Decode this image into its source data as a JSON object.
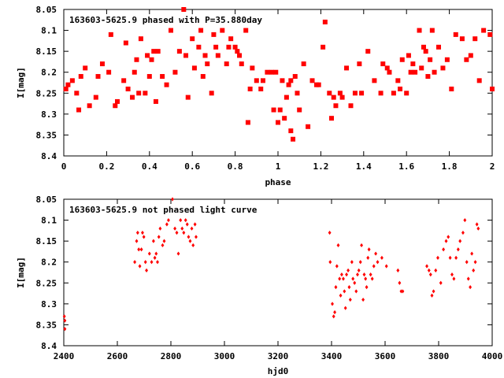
{
  "colors": {
    "points": "#ff0000",
    "axes": "#000000",
    "background": "#ffffff"
  },
  "chart_data": [
    {
      "type": "scatter",
      "marker": "filled-square",
      "title": "163603-5625.9 phased with P=35.880day",
      "xlabel": "phase",
      "ylabel": "I[mag]",
      "xlim": [
        0,
        2
      ],
      "ylim": [
        8.05,
        8.4
      ],
      "y_inverted": true,
      "grid": false,
      "xticks": [
        "0",
        "0.2",
        "0.4",
        "0.6",
        "0.8",
        "1",
        "1.2",
        "1.4",
        "1.6",
        "1.8",
        "2"
      ],
      "yticks": [
        "8.05",
        "8.1",
        "8.15",
        "8.2",
        "8.25",
        "8.3",
        "8.35",
        "8.4"
      ],
      "x": [
        0.01,
        0.02,
        0.04,
        0.06,
        0.07,
        0.08,
        0.1,
        0.12,
        0.15,
        0.16,
        0.18,
        0.21,
        0.22,
        0.24,
        0.25,
        0.28,
        0.29,
        0.3,
        0.32,
        0.33,
        0.34,
        0.35,
        0.36,
        0.38,
        0.39,
        0.4,
        0.41,
        0.42,
        0.43,
        0.44,
        0.46,
        0.48,
        0.5,
        0.52,
        0.54,
        0.56,
        0.57,
        0.58,
        0.6,
        0.61,
        0.63,
        0.64,
        0.65,
        0.66,
        0.67,
        0.69,
        0.7,
        0.71,
        0.72,
        0.74,
        0.76,
        0.77,
        0.78,
        0.8,
        0.81,
        0.82,
        0.83,
        0.85,
        0.86,
        0.87,
        0.88,
        0.9,
        0.92,
        0.93,
        0.95,
        0.97,
        0.98,
        0.99,
        1.0,
        1.01,
        1.02,
        1.03,
        1.04,
        1.05,
        1.06,
        1.06,
        1.07,
        1.08,
        1.09,
        1.1,
        1.12,
        1.14,
        1.16,
        1.18,
        1.19,
        1.21,
        1.22,
        1.24,
        1.25,
        1.26,
        1.27,
        1.29,
        1.3,
        1.32,
        1.34,
        1.36,
        1.38,
        1.39,
        1.42,
        1.45,
        1.48,
        1.49,
        1.51,
        1.52,
        1.54,
        1.56,
        1.57,
        1.58,
        1.6,
        1.61,
        1.62,
        1.63,
        1.64,
        1.66,
        1.67,
        1.68,
        1.69,
        1.7,
        1.71,
        1.72,
        1.73,
        1.75,
        1.77,
        1.79,
        1.81,
        1.83,
        1.86,
        1.88,
        1.9,
        1.92,
        1.94,
        1.96,
        1.99,
        2.0
      ],
      "y": [
        8.24,
        8.23,
        8.22,
        8.25,
        8.29,
        8.21,
        8.19,
        8.28,
        8.26,
        8.21,
        8.18,
        8.2,
        8.11,
        8.28,
        8.27,
        8.22,
        8.13,
        8.24,
        8.26,
        8.2,
        8.17,
        8.25,
        8.12,
        8.25,
        8.16,
        8.21,
        8.17,
        8.15,
        8.27,
        8.15,
        8.21,
        8.23,
        8.1,
        8.2,
        8.15,
        8.05,
        8.16,
        8.26,
        8.12,
        8.19,
        8.14,
        8.1,
        8.21,
        8.16,
        8.18,
        8.25,
        8.11,
        8.14,
        8.16,
        8.1,
        8.18,
        8.14,
        8.12,
        8.14,
        8.15,
        8.16,
        8.18,
        8.1,
        8.32,
        8.24,
        8.19,
        8.22,
        8.24,
        8.22,
        8.2,
        8.2,
        8.29,
        8.2,
        8.32,
        8.29,
        8.22,
        8.31,
        8.26,
        8.23,
        8.34,
        8.22,
        8.36,
        8.21,
        8.25,
        8.29,
        8.18,
        8.33,
        8.22,
        8.23,
        8.23,
        8.14,
        8.08,
        8.25,
        8.31,
        8.26,
        8.28,
        8.25,
        8.26,
        8.19,
        8.28,
        8.25,
        8.18,
        8.25,
        8.15,
        8.22,
        8.25,
        8.18,
        8.19,
        8.2,
        8.25,
        8.22,
        8.24,
        8.17,
        8.25,
        8.16,
        8.2,
        8.18,
        8.2,
        8.1,
        8.19,
        8.14,
        8.15,
        8.21,
        8.17,
        8.1,
        8.2,
        8.14,
        8.19,
        8.17,
        8.24,
        8.11,
        8.12,
        8.17,
        8.16,
        8.12,
        8.22,
        8.1,
        8.11,
        8.24
      ]
    },
    {
      "type": "scatter",
      "marker": "diamond",
      "title": "163603-5625.9 not phased light curve",
      "xlabel": "hjd0",
      "ylabel": "I[mag]",
      "xlim": [
        2400,
        4000
      ],
      "ylim": [
        8.05,
        8.4
      ],
      "y_inverted": true,
      "grid": false,
      "xticks": [
        "2400",
        "2600",
        "2800",
        "3000",
        "3200",
        "3400",
        "3600",
        "3800",
        "4000"
      ],
      "yticks": [
        "8.05",
        "8.1",
        "8.15",
        "8.2",
        "8.25",
        "8.3",
        "8.35",
        "8.4"
      ],
      "x": [
        2402,
        2404,
        2404,
        2665,
        2672,
        2676,
        2680,
        2684,
        2690,
        2694,
        2699,
        2705,
        2709,
        2720,
        2728,
        2735,
        2740,
        2745,
        2750,
        2755,
        2760,
        2769,
        2775,
        2785,
        2791,
        2806,
        2815,
        2822,
        2828,
        2836,
        2842,
        2848,
        2855,
        2861,
        2866,
        2872,
        2878,
        2883,
        2890,
        2894,
        3393,
        3395,
        3403,
        3408,
        3412,
        3416,
        3420,
        3425,
        3430,
        3434,
        3438,
        3444,
        3448,
        3452,
        3456,
        3462,
        3466,
        3470,
        3476,
        3480,
        3486,
        3492,
        3497,
        3502,
        3508,
        3512,
        3518,
        3522,
        3527,
        3531,
        3536,
        3540,
        3546,
        3552,
        3558,
        3565,
        3572,
        3588,
        3605,
        3648,
        3654,
        3660,
        3666,
        3756,
        3764,
        3770,
        3775,
        3781,
        3789,
        3797,
        3808,
        3818,
        3828,
        3836,
        3843,
        3850,
        3857,
        3865,
        3873,
        3880,
        3891,
        3898,
        3905,
        3911,
        3918,
        3924,
        3930,
        3937,
        3943,
        3948
      ],
      "y": [
        8.33,
        8.34,
        8.36,
        8.2,
        8.15,
        8.13,
        8.17,
        8.21,
        8.17,
        8.13,
        8.14,
        8.2,
        8.22,
        8.18,
        8.2,
        8.15,
        8.19,
        8.18,
        8.2,
        8.14,
        8.12,
        8.16,
        8.15,
        8.11,
        8.1,
        8.05,
        8.12,
        8.13,
        8.18,
        8.1,
        8.12,
        8.13,
        8.1,
        8.11,
        8.14,
        8.15,
        8.12,
        8.16,
        8.11,
        8.14,
        8.13,
        8.2,
        8.3,
        8.33,
        8.32,
        8.26,
        8.21,
        8.16,
        8.24,
        8.28,
        8.23,
        8.24,
        8.27,
        8.31,
        8.23,
        8.22,
        8.26,
        8.29,
        8.2,
        8.24,
        8.25,
        8.27,
        8.23,
        8.22,
        8.2,
        8.16,
        8.29,
        8.23,
        8.24,
        8.26,
        8.19,
        8.17,
        8.23,
        8.24,
        8.21,
        8.18,
        8.2,
        8.19,
        8.21,
        8.22,
        8.25,
        8.27,
        8.27,
        8.21,
        8.22,
        8.23,
        8.28,
        8.27,
        8.22,
        8.19,
        8.25,
        8.17,
        8.15,
        8.14,
        8.19,
        8.23,
        8.24,
        8.19,
        8.17,
        8.15,
        8.13,
        8.1,
        8.2,
        8.24,
        8.26,
        8.18,
        8.22,
        8.2,
        8.11,
        8.12
      ]
    }
  ]
}
